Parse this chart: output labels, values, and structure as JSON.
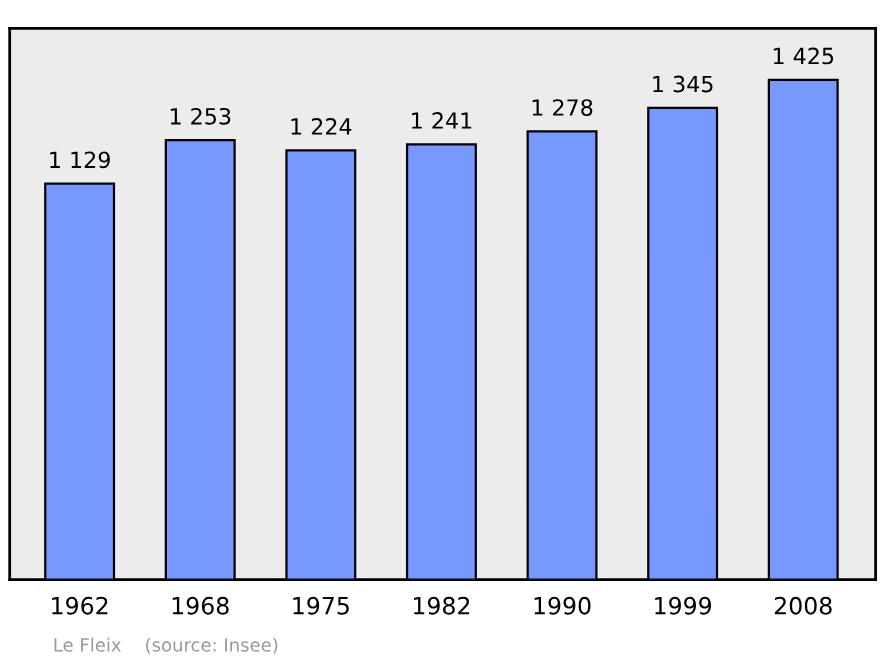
{
  "chart_data": {
    "type": "bar",
    "categories": [
      "1962",
      "1968",
      "1975",
      "1982",
      "1990",
      "1999",
      "2008"
    ],
    "values": [
      1129,
      1253,
      1224,
      1241,
      1278,
      1345,
      1425
    ],
    "value_labels": [
      "1 129",
      "1 253",
      "1 224",
      "1 241",
      "1 278",
      "1 345",
      "1 425"
    ],
    "color": "#7799ff",
    "grid": false,
    "legend": false,
    "annotations": [
      "Le Fleix    (source: Insee)"
    ]
  }
}
